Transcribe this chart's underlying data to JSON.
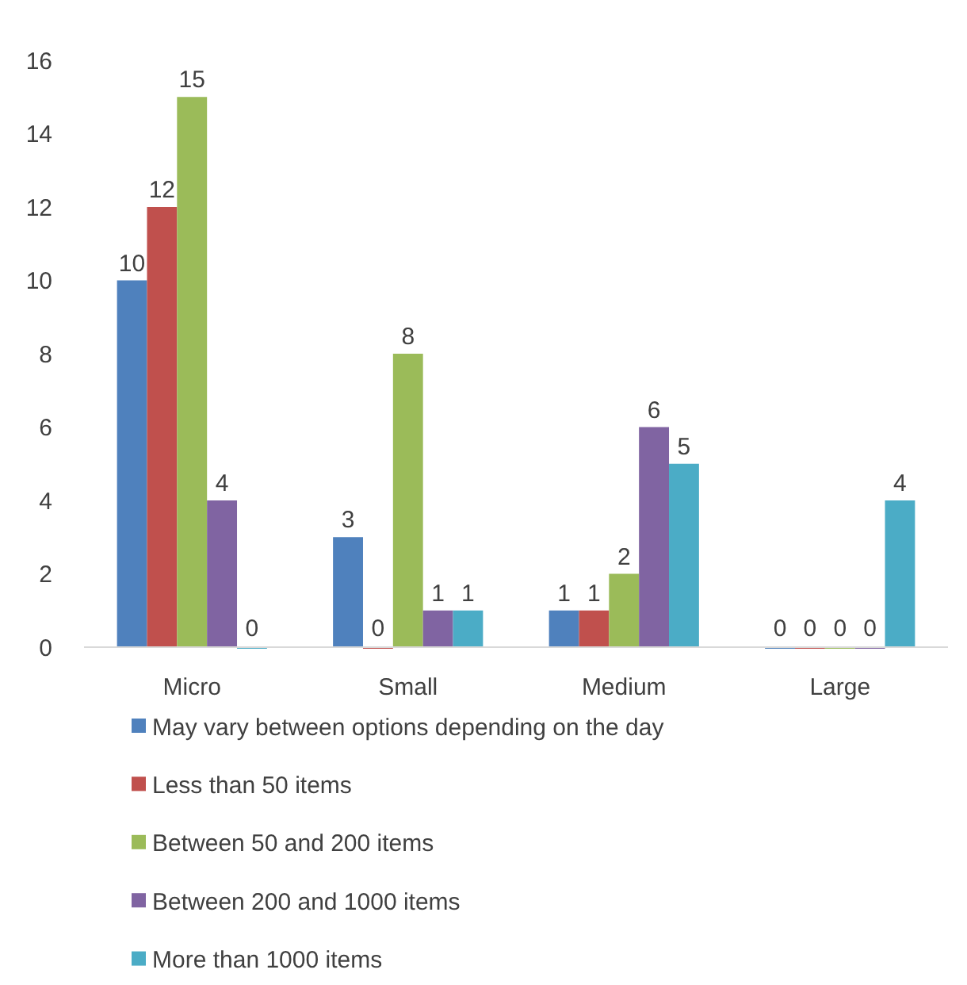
{
  "chart_data": {
    "type": "bar",
    "categories": [
      "Micro",
      "Small",
      "Medium",
      "Large"
    ],
    "series": [
      {
        "name": "May vary between options depending on the day",
        "color": "#4f81bd",
        "values": [
          10,
          3,
          1,
          0
        ]
      },
      {
        "name": "Less than 50 items",
        "color": "#c0504d",
        "values": [
          12,
          0,
          1,
          0
        ]
      },
      {
        "name": "Between 50 and 200 items",
        "color": "#9bbb59",
        "values": [
          15,
          8,
          2,
          0
        ]
      },
      {
        "name": "Between 200 and 1000 items",
        "color": "#8064a2",
        "values": [
          4,
          1,
          6,
          0
        ]
      },
      {
        "name": "More than 1000 items",
        "color": "#4bacc6",
        "values": [
          0,
          1,
          5,
          4
        ]
      }
    ],
    "ylim": [
      0,
      16
    ],
    "yticks": [
      0,
      2,
      4,
      6,
      8,
      10,
      12,
      14,
      16
    ],
    "grid": false,
    "legend": "bottom",
    "data_labels": true
  }
}
